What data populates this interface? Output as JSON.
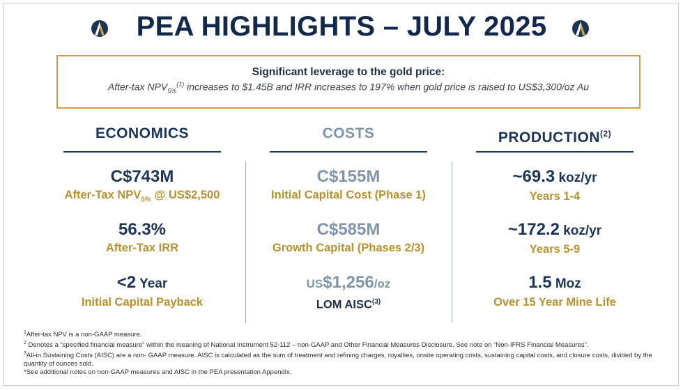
{
  "header": {
    "title": "PEA HIGHLIGHTS – JULY 2025"
  },
  "colors": {
    "navy": "#1c3557",
    "gold": "#b8912f",
    "muted_blue": "#8095ab",
    "callout_border": "#c9a14a"
  },
  "callout": {
    "heading": "Significant leverage to the gold price:",
    "body_prefix": "After-tax NPV",
    "body_sub": "5%",
    "body_sup": "(1)",
    "body_text": " increases to $1.45B and IRR increases to 197% when gold price is raised to US$3,300/oz Au"
  },
  "columns": {
    "economics": {
      "heading": "ECONOMICS",
      "metrics": [
        {
          "value": "C$743M",
          "label_prefix": "After-Tax NPV",
          "label_sub": "5%",
          "label_suffix": " @ US$2,500"
        },
        {
          "value": "56.3%",
          "label": "After-Tax IRR"
        },
        {
          "value_main": "<2",
          "value_unit": " Year",
          "label": "Initial Capital Payback"
        }
      ]
    },
    "costs": {
      "heading": "COSTS",
      "metrics": [
        {
          "value": "C$155M",
          "label": "Initial Capital Cost (Phase 1)"
        },
        {
          "value": "C$585M",
          "label": "Growth Capital (Phases 2/3)"
        },
        {
          "value_pre": "US",
          "value_main": "$1,256",
          "value_unit": "/oz",
          "label_prefix": "LOM AISC",
          "label_sup": "(3)"
        }
      ]
    },
    "production": {
      "heading": "PRODUCTION",
      "heading_sup": "(2)",
      "metrics": [
        {
          "value_main": "~69.3",
          "value_unit": " koz/yr",
          "label": "Years 1-4"
        },
        {
          "value_main": "~172.2",
          "value_unit": " koz/yr",
          "label": "Years 5-9"
        },
        {
          "value_main": "1.5",
          "value_unit": " Moz",
          "label": "Over 15 Year Mine Life"
        }
      ]
    }
  },
  "footnotes": [
    {
      "mark": "1",
      "text": "After-tax NPV is a non-GAAP measure."
    },
    {
      "mark": "2",
      "text": " Denotes a “specified financial measure” within the meaning of National Instrument 52-112 – non-GAAP and Other Financial Measures Disclosure. See note on “Non-IFRS Financial Measures”."
    },
    {
      "mark": "3",
      "text": "All-in Sustaining Costs (AISC) are a non- GAAP measure. AISC is calculated as the sum of treatment and refining charges, royalties, onsite operating costs, sustaining capital costs, and closure costs, divided by the quantity of ounces sold."
    },
    {
      "mark": "",
      "text": "*See additional notes on non-GAAP measures and AISC in the PEA presentation Appendix."
    }
  ]
}
